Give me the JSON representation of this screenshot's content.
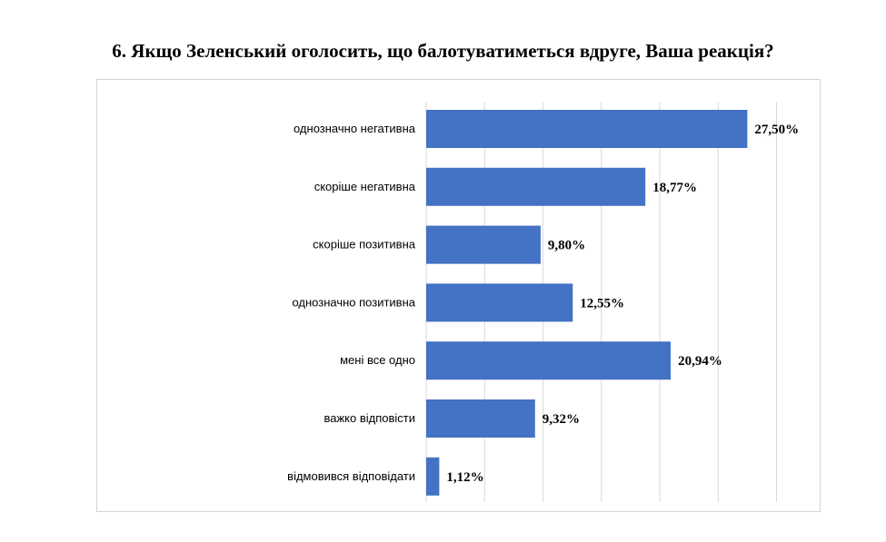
{
  "chart_data": {
    "type": "bar",
    "orientation": "horizontal",
    "title": "6. Якщо Зеленський оголосить, що балотуватиметься вдруге, Ваша реакція?",
    "categories": [
      "однозначно негативна",
      "скоріше негативна",
      "скоріше позитивна",
      "однозначно позитивна",
      "мені все одно",
      "важко відповісти",
      "відмовився відповідати"
    ],
    "values": [
      27.5,
      18.77,
      9.8,
      12.55,
      20.94,
      9.32,
      1.12
    ],
    "value_labels": [
      "27,50%",
      "18,77%",
      "9,80%",
      "12,55%",
      "20,94%",
      "9,32%",
      "1,12%"
    ],
    "xlim": [
      0,
      30
    ],
    "grid": true,
    "bar_color": "#4472C4",
    "grid_color": "#d9d9d9"
  }
}
